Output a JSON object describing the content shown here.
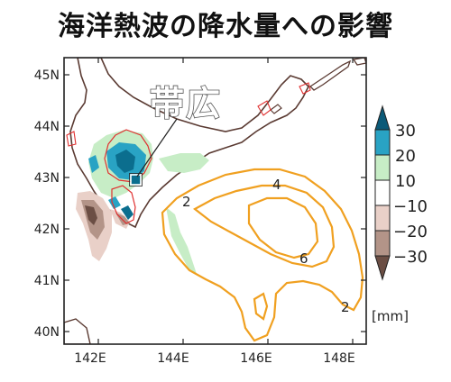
{
  "title": "海洋熱波の降水量への影響",
  "city_label": "帯広",
  "lat_ticks": [
    "45N",
    "44N",
    "43N",
    "42N",
    "41N",
    "40N"
  ],
  "lon_ticks": [
    "142E",
    "144E",
    "146E",
    "148E"
  ],
  "colorbar": {
    "ticks": [
      "30",
      "20",
      "10",
      "−10",
      "−20",
      "−30"
    ],
    "unit": "[mm]",
    "colors": {
      "pos_high": "#0b6e8e",
      "pos_mid": "#29a3c4",
      "pos_low": "#c7edc6",
      "neg_low": "#e9d0c8",
      "neg_mid": "#b39488",
      "neg_high": "#6b4e44"
    }
  },
  "contour_labels": [
    "2",
    "4",
    "6",
    "2"
  ],
  "contour_color": "#f0a020",
  "coast_color": "#5a3a32",
  "small_contour_color": "#e03030"
}
